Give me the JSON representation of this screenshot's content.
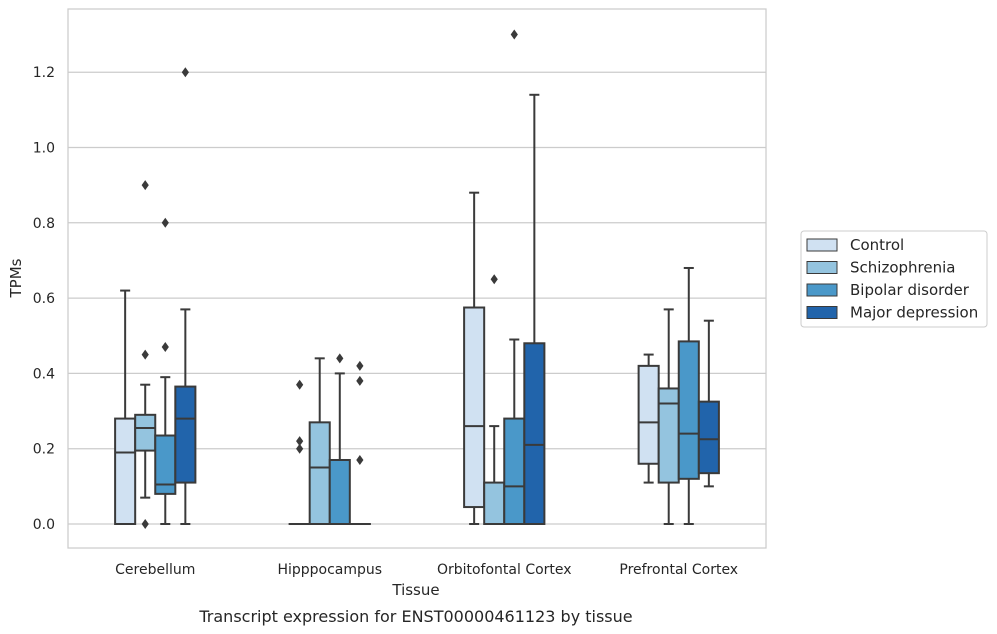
{
  "chart_data": {
    "type": "boxplot",
    "xlabel": "Tissue",
    "ylabel": "TPMs",
    "caption": "Transcript expression for ENST00000461123 by tissue",
    "ylim": [
      -0.065,
      1.375
    ],
    "yticks": [
      0.0,
      0.2,
      0.4,
      0.6,
      0.8,
      1.0,
      1.2
    ],
    "grid": "horizontal",
    "legend_position": "right",
    "categories": [
      "Cerebellum",
      "Hipppocampus",
      "Orbitofontal Cortex",
      "Prefrontal Cortex"
    ],
    "series": [
      {
        "name": "Control",
        "color": "#d0e1f2",
        "boxes": [
          {
            "whislo": 0.0,
            "q1": 0.0,
            "med": 0.19,
            "q3": 0.28,
            "whishi": 0.62,
            "fliers": []
          },
          {
            "whislo": 0.0,
            "q1": 0.0,
            "med": 0.0,
            "q3": 0.0,
            "whishi": 0.0,
            "fliers": [
              0.2,
              0.22,
              0.37
            ]
          },
          {
            "whislo": 0.0,
            "q1": 0.045,
            "med": 0.26,
            "q3": 0.575,
            "whishi": 0.88,
            "fliers": []
          },
          {
            "whislo": 0.11,
            "q1": 0.16,
            "med": 0.27,
            "q3": 0.42,
            "whishi": 0.45,
            "fliers": []
          }
        ]
      },
      {
        "name": "Schizophrenia",
        "color": "#94c4df",
        "boxes": [
          {
            "whislo": 0.07,
            "q1": 0.195,
            "med": 0.255,
            "q3": 0.29,
            "whishi": 0.37,
            "fliers": [
              0.0,
              0.45,
              0.9
            ]
          },
          {
            "whislo": 0.0,
            "q1": 0.0,
            "med": 0.15,
            "q3": 0.27,
            "whishi": 0.44,
            "fliers": []
          },
          {
            "whislo": 0.0,
            "q1": 0.0,
            "med": 0.0,
            "q3": 0.11,
            "whishi": 0.26,
            "fliers": [
              0.65
            ]
          },
          {
            "whislo": 0.0,
            "q1": 0.11,
            "med": 0.32,
            "q3": 0.36,
            "whishi": 0.57,
            "fliers": []
          }
        ]
      },
      {
        "name": "Bipolar disorder",
        "color": "#4a98c9",
        "boxes": [
          {
            "whislo": 0.0,
            "q1": 0.08,
            "med": 0.105,
            "q3": 0.235,
            "whishi": 0.39,
            "fliers": [
              0.47,
              0.8
            ]
          },
          {
            "whislo": 0.0,
            "q1": 0.0,
            "med": 0.0,
            "q3": 0.17,
            "whishi": 0.4,
            "fliers": [
              0.44
            ]
          },
          {
            "whislo": 0.0,
            "q1": 0.0,
            "med": 0.1,
            "q3": 0.28,
            "whishi": 0.49,
            "fliers": [
              1.3
            ]
          },
          {
            "whislo": 0.0,
            "q1": 0.12,
            "med": 0.24,
            "q3": 0.485,
            "whishi": 0.68,
            "fliers": []
          }
        ]
      },
      {
        "name": "Major depression",
        "color": "#2164ab",
        "boxes": [
          {
            "whislo": 0.0,
            "q1": 0.11,
            "med": 0.28,
            "q3": 0.365,
            "whishi": 0.57,
            "fliers": [
              1.2
            ]
          },
          {
            "whislo": 0.0,
            "q1": 0.0,
            "med": 0.0,
            "q3": 0.0,
            "whishi": 0.0,
            "fliers": [
              0.17,
              0.38,
              0.42
            ]
          },
          {
            "whislo": 0.0,
            "q1": 0.0,
            "med": 0.21,
            "q3": 0.48,
            "whishi": 1.14,
            "fliers": []
          },
          {
            "whislo": 0.1,
            "q1": 0.135,
            "med": 0.225,
            "q3": 0.325,
            "whishi": 0.54,
            "fliers": []
          }
        ]
      }
    ]
  }
}
